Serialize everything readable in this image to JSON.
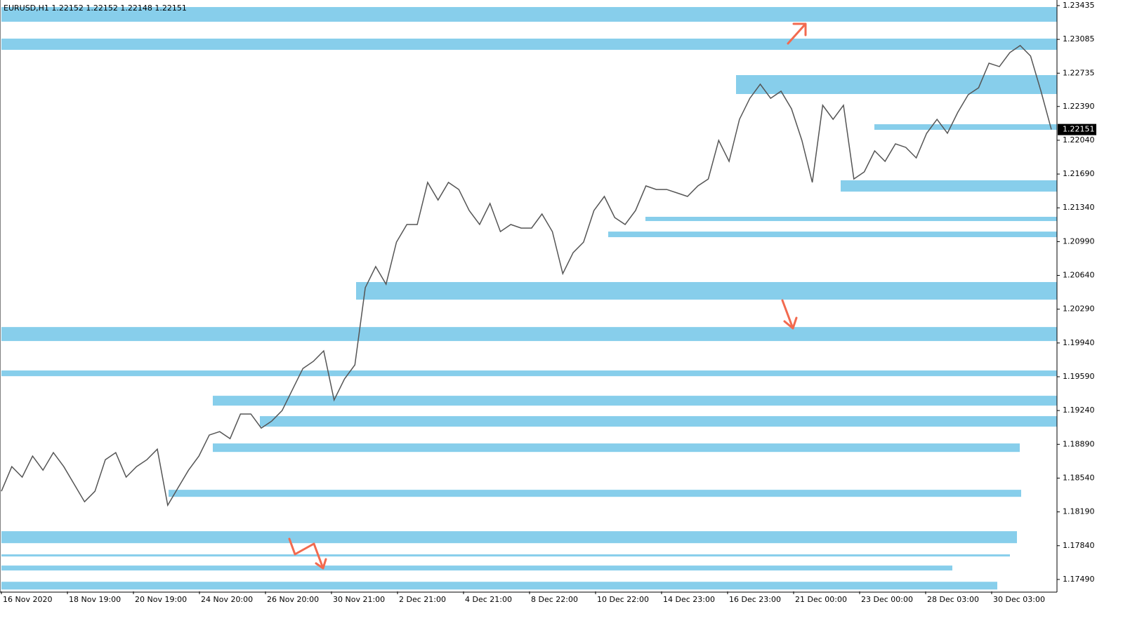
{
  "chart_data": {
    "type": "line",
    "title": "EURUSD,H1  1.22152 1.22152 1.22148 1.22151",
    "x_labels": [
      "16 Nov 2020",
      "18 Nov 19:00",
      "20 Nov 19:00",
      "24 Nov 20:00",
      "26 Nov 20:00",
      "30 Nov 21:00",
      "2 Dec 21:00",
      "4 Dec 21:00",
      "8 Dec 22:00",
      "10 Dec 22:00",
      "14 Dec 23:00",
      "16 Dec 23:00",
      "21 Dec 00:00",
      "23 Dec 00:00",
      "28 Dec 03:00",
      "30 Dec 03:00"
    ],
    "series": [
      {
        "name": "EURUSD",
        "color": "#555555",
        "values": [
          1.18404,
          1.18659,
          1.1855,
          1.18768,
          1.18622,
          1.18804,
          1.18659,
          1.18477,
          1.18295,
          1.18404,
          1.18731,
          1.18804,
          1.1855,
          1.18659,
          1.18731,
          1.1884,
          1.18259,
          1.18441,
          1.18622,
          1.18768,
          1.18986,
          1.19022,
          1.18949,
          1.19204,
          1.19204,
          1.19058,
          1.19131,
          1.1924,
          1.19458,
          1.19676,
          1.19749,
          1.19858,
          1.19349,
          1.19567,
          1.19713,
          1.20512,
          1.20731,
          1.20549,
          1.20985,
          1.21167,
          1.21167,
          1.21603,
          1.21421,
          1.21603,
          1.2153,
          1.21312,
          1.21167,
          1.21385,
          1.21094,
          1.21167,
          1.2113,
          1.2113,
          1.21276,
          1.21094,
          1.20658,
          1.20876,
          1.20985,
          1.21312,
          1.21458,
          1.21239,
          1.21167,
          1.21312,
          1.21567,
          1.2153,
          1.2153,
          1.21494,
          1.21458,
          1.21567,
          1.21639,
          1.22039,
          1.21821,
          1.22257,
          1.22475,
          1.22621,
          1.22475,
          1.22548,
          1.22366,
          1.22039,
          1.21603,
          1.22403,
          1.22257,
          1.22403,
          1.21639,
          1.21712,
          1.2193,
          1.21821,
          1.22003,
          1.21966,
          1.21857,
          1.22112,
          1.22257,
          1.22112,
          1.2233,
          1.22512,
          1.22584,
          1.22839,
          1.22803,
          1.22948,
          1.23021,
          1.22912,
          1.22548,
          1.22151
        ]
      }
    ],
    "zones": [
      {
        "high": 1.2342,
        "low": 1.23268
      },
      {
        "high": 1.23093,
        "low": 1.22977
      },
      {
        "high": 1.22715,
        "low": 1.22519
      },
      {
        "high": 1.22206,
        "low": 1.22148
      },
      {
        "high": 1.21625,
        "low": 1.21508
      },
      {
        "high": 1.21247,
        "low": 1.21203
      },
      {
        "high": 1.21094,
        "low": 1.21036
      },
      {
        "high": 1.20571,
        "low": 1.20389
      },
      {
        "high": 1.20105,
        "low": 1.1996
      },
      {
        "high": 1.19655,
        "low": 1.19596
      },
      {
        "high": 1.19393,
        "low": 1.19291
      },
      {
        "high": 1.19182,
        "low": 1.19073
      },
      {
        "high": 1.18899,
        "low": 1.18811
      },
      {
        "high": 1.18419,
        "low": 1.18346
      },
      {
        "high": 1.1799,
        "low": 1.17866
      },
      {
        "high": 1.1775,
        "low": 1.17728
      },
      {
        "high": 1.17634,
        "low": 1.17583
      },
      {
        "high": 1.17466,
        "low": 1.17386
      }
    ],
    "zone_color": "#87ceeb",
    "last_price": 1.22151,
    "ylim": [
      1.17366,
      1.23493
    ],
    "yticks": [
      1.23435,
      1.23085,
      1.22735,
      {
        "value": 1.2239,
        "label": "1.22390"
      },
      {
        "value": 1.2204,
        "label": "1.22040"
      },
      {
        "value": 1.2169,
        "label": "1.21690"
      },
      {
        "value": 1.2134,
        "label": "1.21340"
      },
      {
        "value": 1.2099,
        "label": "1.20990"
      },
      {
        "value": 1.2064,
        "label": "1.20640"
      },
      {
        "value": 1.2029,
        "label": "1.20290"
      },
      {
        "value": 1.1994,
        "label": "1.19940"
      },
      {
        "value": 1.1959,
        "label": "1.19590"
      },
      {
        "value": 1.1924,
        "label": "1.19240"
      },
      {
        "value": 1.1889,
        "label": "1.18890"
      },
      {
        "value": 1.1854,
        "label": "1.18540"
      },
      {
        "value": 1.1819,
        "label": "1.18190"
      },
      {
        "value": 1.1784,
        "label": "1.17840"
      },
      {
        "value": 1.1749,
        "label": "1.17490"
      }
    ]
  }
}
